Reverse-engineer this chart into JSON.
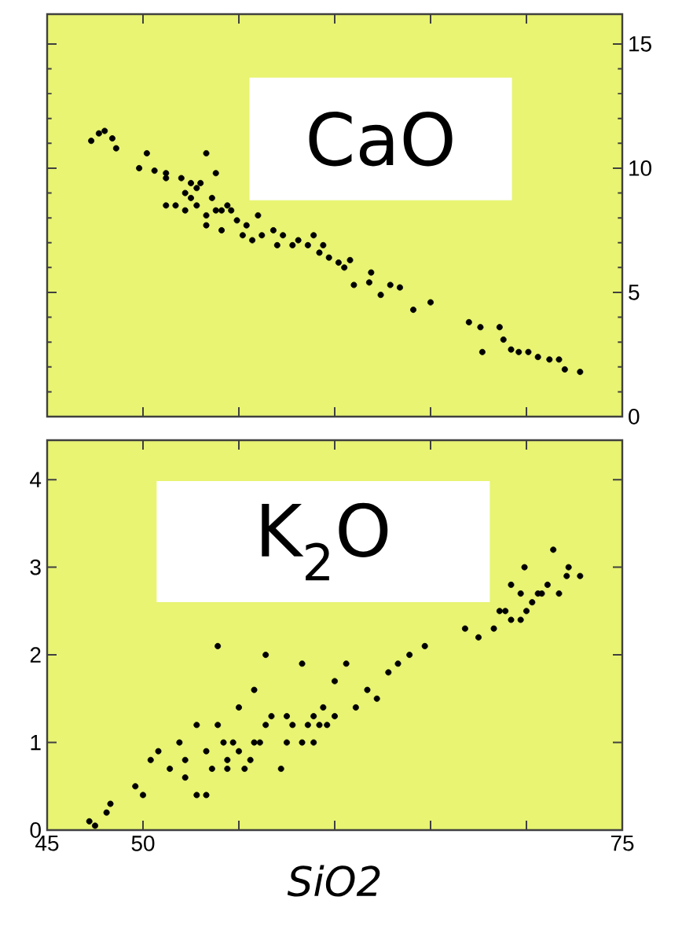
{
  "chart_data": [
    {
      "type": "scatter",
      "annotations": [
        "CaO"
      ],
      "xlim": [
        45,
        75
      ],
      "ylim": [
        0,
        16.2
      ],
      "tick_labels": "y",
      "xticks": [
        {
          "value": 45,
          "label": null
        },
        {
          "value": 50,
          "label": null
        },
        {
          "value": 55,
          "label": null
        },
        {
          "value": 60,
          "label": null
        },
        {
          "value": 65,
          "label": null
        },
        {
          "value": 70,
          "label": null
        },
        {
          "value": 75,
          "label": null
        }
      ],
      "yticks": [
        0,
        5,
        10,
        15
      ],
      "x": [
        47.3,
        47.7,
        48.0,
        48.4,
        48.6,
        49.8,
        50.2,
        50.6,
        51.2,
        51.2,
        51.7,
        52.0,
        52.5,
        52.8,
        53.0,
        53.3,
        53.3,
        53.6,
        53.8,
        54.1,
        54.1,
        54.4,
        54.9,
        55.4,
        56.0,
        56.2,
        56.8,
        57.0,
        57.3,
        57.8,
        58.1,
        58.6,
        58.9,
        59.2,
        59.4,
        59.7,
        60.2,
        60.5,
        60.8,
        61.0,
        61.8,
        61.9,
        62.4,
        62.9,
        63.4,
        64.1,
        65.0,
        67.0,
        67.6,
        67.7,
        68.6,
        68.8,
        69.2,
        69.6,
        70.1,
        70.6,
        71.2,
        71.7,
        72.0,
        72.8,
        52.2,
        52.8,
        51.2,
        52.2,
        55.2,
        54.6,
        55.7,
        53.3,
        53.8,
        52.5
      ],
      "series": [
        {
          "color": "#000000",
          "marker": "circle",
          "values": [
            11.1,
            11.4,
            11.5,
            11.2,
            10.8,
            10.0,
            10.6,
            9.9,
            9.6,
            8.5,
            8.5,
            9.6,
            9.4,
            9.2,
            9.4,
            10.6,
            7.7,
            8.8,
            9.8,
            7.5,
            8.3,
            8.5,
            7.9,
            7.7,
            8.1,
            7.3,
            7.5,
            6.9,
            7.3,
            6.9,
            7.1,
            6.9,
            7.3,
            6.6,
            6.9,
            6.4,
            6.2,
            6.0,
            6.3,
            5.3,
            5.4,
            5.8,
            4.9,
            5.3,
            5.2,
            4.3,
            4.6,
            3.8,
            3.6,
            2.6,
            3.6,
            3.1,
            2.7,
            2.6,
            2.6,
            2.4,
            2.3,
            2.3,
            1.9,
            1.8,
            9.0,
            8.5,
            9.8,
            8.3,
            7.3,
            8.3,
            7.1,
            8.1,
            8.3,
            8.8
          ]
        }
      ]
    },
    {
      "type": "scatter",
      "annotations": [
        "K$_{2}$O"
      ],
      "xlabel": "SiO2",
      "xlim": [
        45,
        75
      ],
      "ylim": [
        0,
        4.45
      ],
      "xticks": [
        45,
        50,
        {
          "value": 55,
          "label": null
        },
        {
          "value": 60,
          "label": null
        },
        {
          "value": 65,
          "label": null
        },
        {
          "value": 70,
          "label": null
        },
        75
      ],
      "yticks": [
        0,
        1,
        2,
        3,
        4
      ],
      "x": [
        47.2,
        47.5,
        48.1,
        48.3,
        49.6,
        50.0,
        50.4,
        50.8,
        51.4,
        51.9,
        52.2,
        52.8,
        52.8,
        53.3,
        53.6,
        53.9,
        54.2,
        54.4,
        54.7,
        55.0,
        55.3,
        55.6,
        55.8,
        56.1,
        56.4,
        56.7,
        57.2,
        57.5,
        57.8,
        58.3,
        58.3,
        58.6,
        58.9,
        59.4,
        60.0,
        60.0,
        60.6,
        61.1,
        61.7,
        62.2,
        62.8,
        63.3,
        63.9,
        64.7,
        66.8,
        67.5,
        68.3,
        68.6,
        69.2,
        69.7,
        69.2,
        69.9,
        69.7,
        70.3,
        70.8,
        71.1,
        71.4,
        71.7,
        72.1,
        72.2,
        72.8,
        53.9,
        56.4,
        55.8,
        55.0,
        52.2,
        53.3,
        54.4,
        57.5,
        58.9,
        59.2,
        59.6,
        70.6,
        70.0,
        68.9
      ],
      "series": [
        {
          "color": "#000000",
          "marker": "circle",
          "values": [
            0.1,
            0.05,
            0.2,
            0.3,
            0.5,
            0.4,
            0.8,
            0.9,
            0.7,
            1.0,
            0.8,
            0.4,
            1.2,
            0.9,
            0.7,
            1.2,
            1.0,
            0.8,
            1.0,
            0.9,
            0.7,
            0.8,
            1.0,
            1.0,
            1.2,
            1.3,
            0.7,
            1.3,
            1.2,
            1.9,
            1.0,
            1.2,
            1.3,
            1.4,
            1.3,
            1.7,
            1.9,
            1.4,
            1.6,
            1.5,
            1.8,
            1.9,
            2.0,
            2.1,
            2.3,
            2.2,
            2.3,
            2.5,
            2.4,
            2.4,
            2.8,
            3.0,
            2.7,
            2.6,
            2.7,
            2.8,
            3.2,
            2.7,
            2.9,
            3.0,
            2.9,
            2.1,
            2.0,
            1.6,
            1.4,
            0.6,
            0.4,
            0.7,
            1.0,
            1.0,
            1.2,
            1.2,
            2.7,
            2.5,
            2.5
          ]
        }
      ]
    }
  ]
}
